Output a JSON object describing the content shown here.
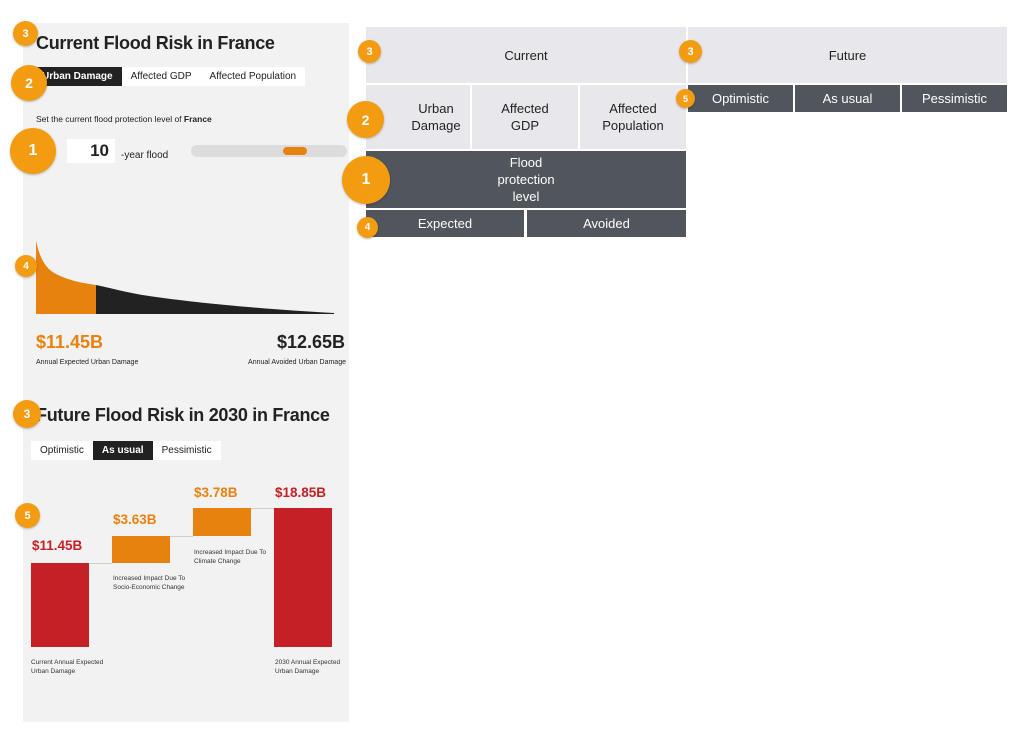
{
  "current": {
    "title": "Current Flood Risk in France",
    "tabs": [
      "Urban Damage",
      "Affected GDP",
      "Affected Population"
    ],
    "active_tab": "Urban Damage",
    "protection_prefix": "Set the current flood protection level of ",
    "country": "France",
    "protection_value": "10",
    "protection_unit": "-year flood",
    "slider_level_percent": 70,
    "expected_value": "$11.45B",
    "expected_label": "Annual Expected Urban Damage",
    "avoided_value": "$12.65B",
    "avoided_label": "Annual Avoided Urban Damage"
  },
  "future": {
    "title": "Future Flood Risk in 2030 in France",
    "tabs": [
      "Optimistic",
      "As usual",
      "Pessimistic"
    ],
    "active_tab": "As usual",
    "waterfall": [
      {
        "value": "$11.45B",
        "label": "Current Annual Expected Urban Damage"
      },
      {
        "value": "$3.63B",
        "label": "Increased Impact Due To Socio-Economic Change"
      },
      {
        "value": "$3.78B",
        "label": "Increased Impact Due To Climate Change"
      },
      {
        "value": "$18.85B",
        "label": "2030 Annual Expected Urban Damage"
      }
    ]
  },
  "chart_data": {
    "type": "bar",
    "categories": [
      "Current Annual Expected Urban Damage",
      "Increased Impact Due To Socio-Economic Change",
      "Increased Impact Due To Climate Change",
      "2030 Annual Expected Urban Damage"
    ],
    "values": [
      11.45,
      3.63,
      3.78,
      18.85
    ],
    "units": "$B"
  },
  "diagram": {
    "current": "Current",
    "future": "Future",
    "metrics": [
      "Urban\nDamage",
      "Affected\nGDP",
      "Affected\nPopulation"
    ],
    "protection": "Flood\nprotection\nlevel",
    "expected": "Expected",
    "avoided": "Avoided",
    "scenarios": [
      "Optimistic",
      "As usual",
      "Pessimistic"
    ]
  },
  "badges": {
    "one": "1",
    "two": "2",
    "three": "3",
    "four": "4",
    "five": "5"
  },
  "colors": {
    "orange": "#e8820f",
    "red": "#c62027",
    "dark": "#222222",
    "badge": "#f39c12",
    "grid_dark": "#51565c",
    "grid_light": "#e8e8ec"
  }
}
